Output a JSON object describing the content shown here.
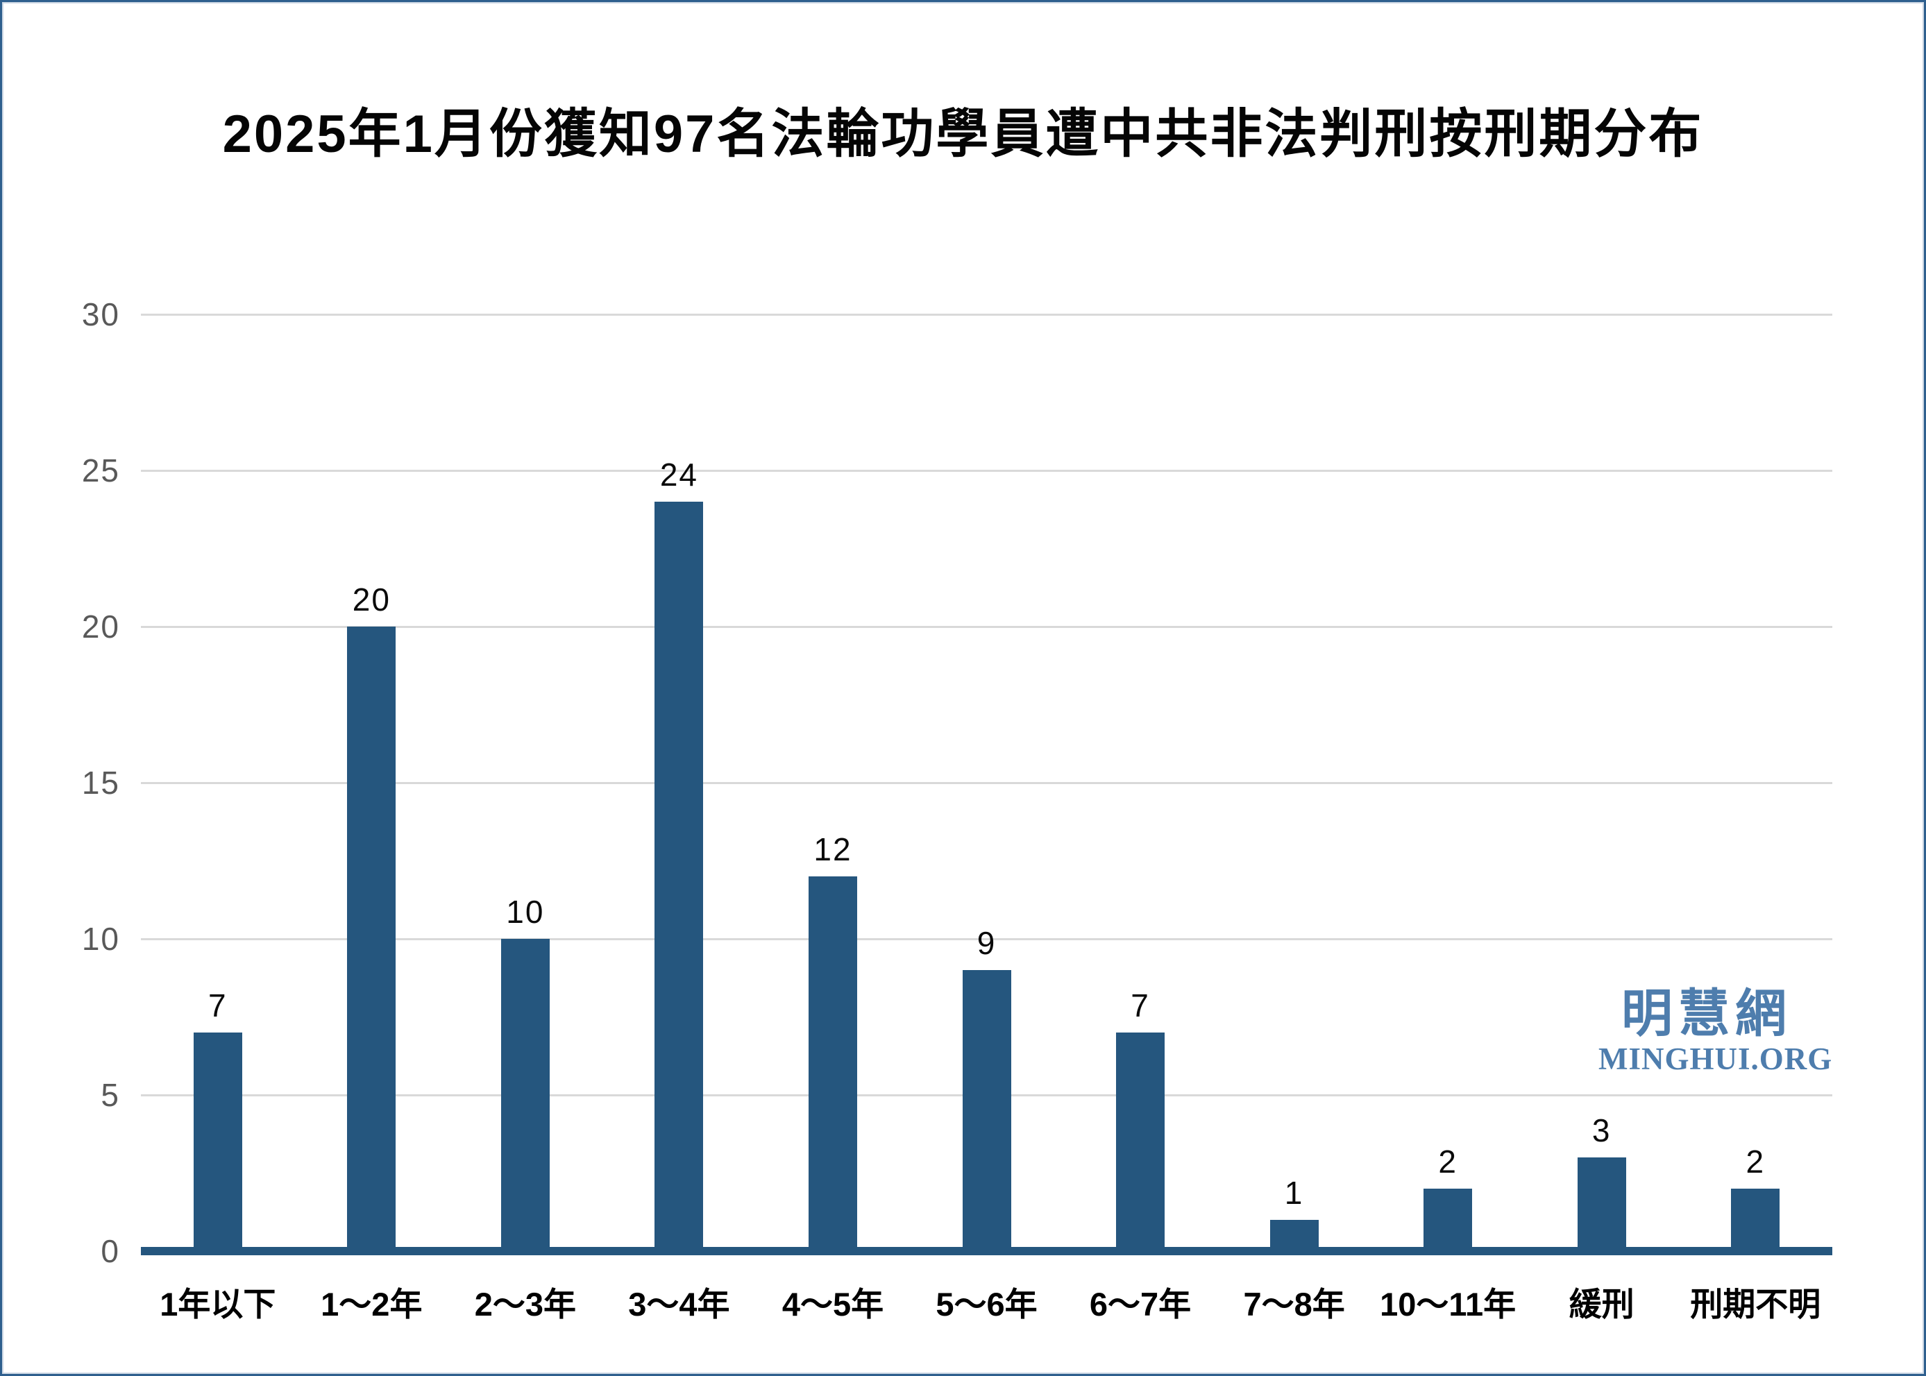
{
  "title": "2025年1月份獲知97名法輪功學員遭中共非法判刑按刑期分布",
  "watermark": {
    "cjk": "明慧網",
    "latin": "MINGHUI.ORG",
    "color": "#4e7dad"
  },
  "colors": {
    "bar": "#25567e",
    "axis_line": "#25567e",
    "gridline": "#d9d9d9",
    "tick_label": "#595959",
    "value_label": "#0a0a0a",
    "category_label": "#000000",
    "frame_border": "#2e5f8e",
    "background": "#ffffff"
  },
  "chart_data": {
    "type": "bar",
    "title": "2025年1月份獲知97名法輪功學員遭中共非法判刑按刑期分布",
    "categories": [
      "1年以下",
      "1～2年",
      "2～3年",
      "3～4年",
      "4～5年",
      "5～6年",
      "6～7年",
      "7～8年",
      "10～11年",
      "緩刑",
      "刑期不明"
    ],
    "values": [
      7,
      20,
      10,
      24,
      12,
      9,
      7,
      1,
      2,
      3,
      2
    ],
    "total": 97,
    "xlabel": "",
    "ylabel": "",
    "ylim": [
      0,
      30
    ],
    "yticks": [
      0,
      5,
      10,
      15,
      20,
      25,
      30
    ],
    "grid": true,
    "legend": false,
    "bar_value_labels": true
  }
}
